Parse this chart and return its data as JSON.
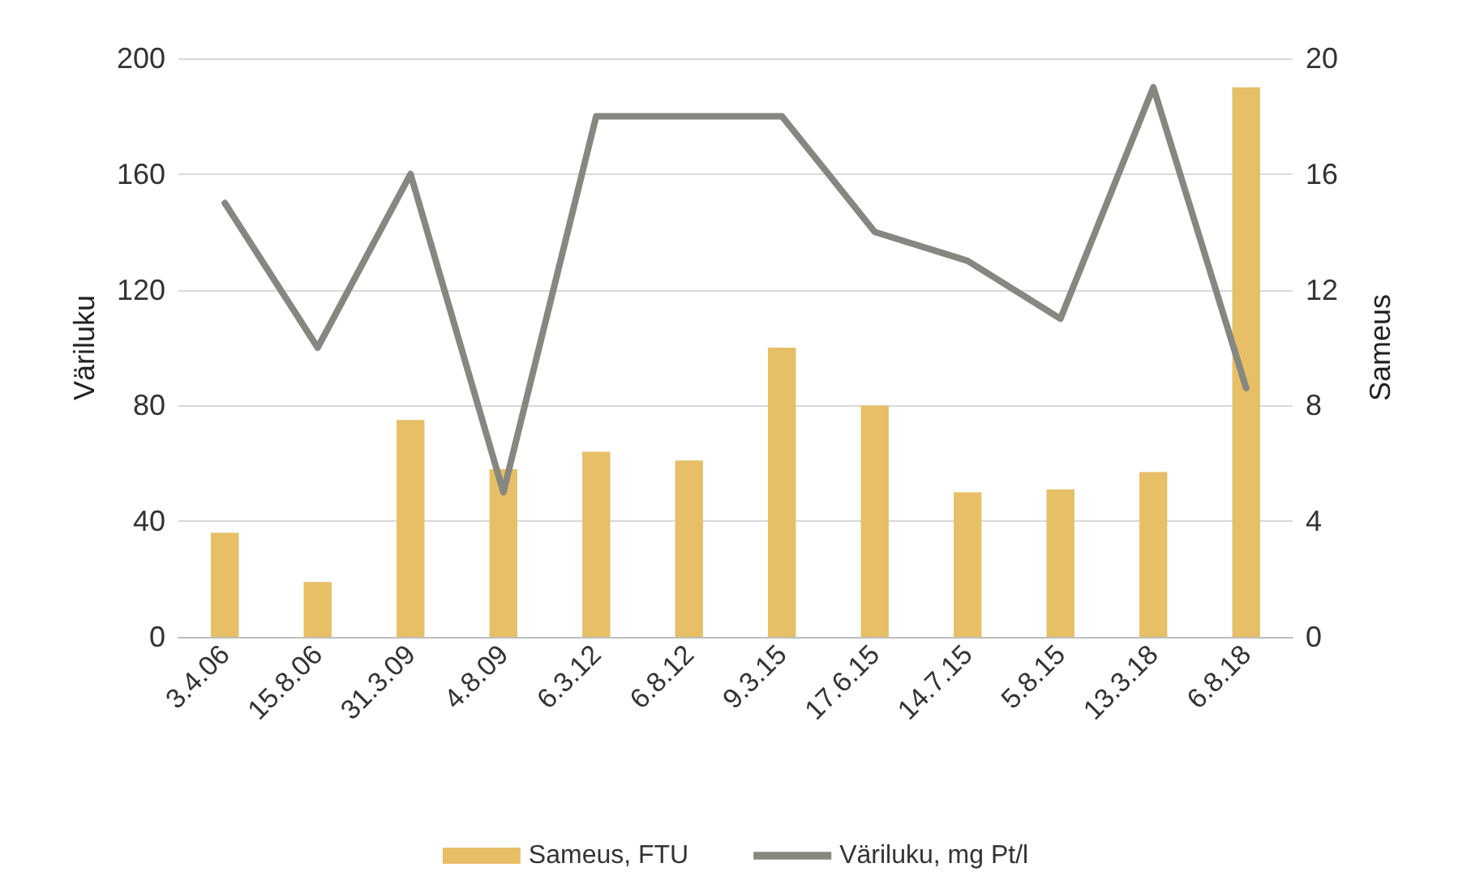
{
  "chart_data": {
    "type": "bar",
    "ylabel": "Väriluku",
    "y2label": "Sameus",
    "categories": [
      "3.4.06",
      "15.8.06",
      "31.3.09",
      "4.8.09",
      "6.3.12",
      "6.8.12",
      "9.3.15",
      "17.6.15",
      "14.7.15",
      "5.8.15",
      "13.3.18",
      "6.8.18"
    ],
    "series": [
      {
        "name": "Sameus, FTU",
        "axis": "y2",
        "color": "#e6bf66",
        "values": [
          3.6,
          1.9,
          7.5,
          5.8,
          6.4,
          6.1,
          10,
          8,
          5,
          5.1,
          5.7,
          19
        ]
      },
      {
        "name": "Väriluku, mg Pt/l",
        "type": "line",
        "color": "#878781",
        "values": [
          150,
          100,
          160,
          50,
          180,
          180,
          180,
          140,
          130,
          110,
          190,
          86
        ]
      }
    ],
    "ylim": [
      0,
      200
    ],
    "yticks": [
      0,
      40,
      80,
      120,
      160,
      200
    ],
    "y2lim": [
      0,
      20
    ],
    "y2ticks": [
      0,
      4,
      8,
      12,
      16,
      20
    ],
    "grid": "y",
    "legend": "bottom",
    "marker": "none",
    "line_style": "solid"
  }
}
